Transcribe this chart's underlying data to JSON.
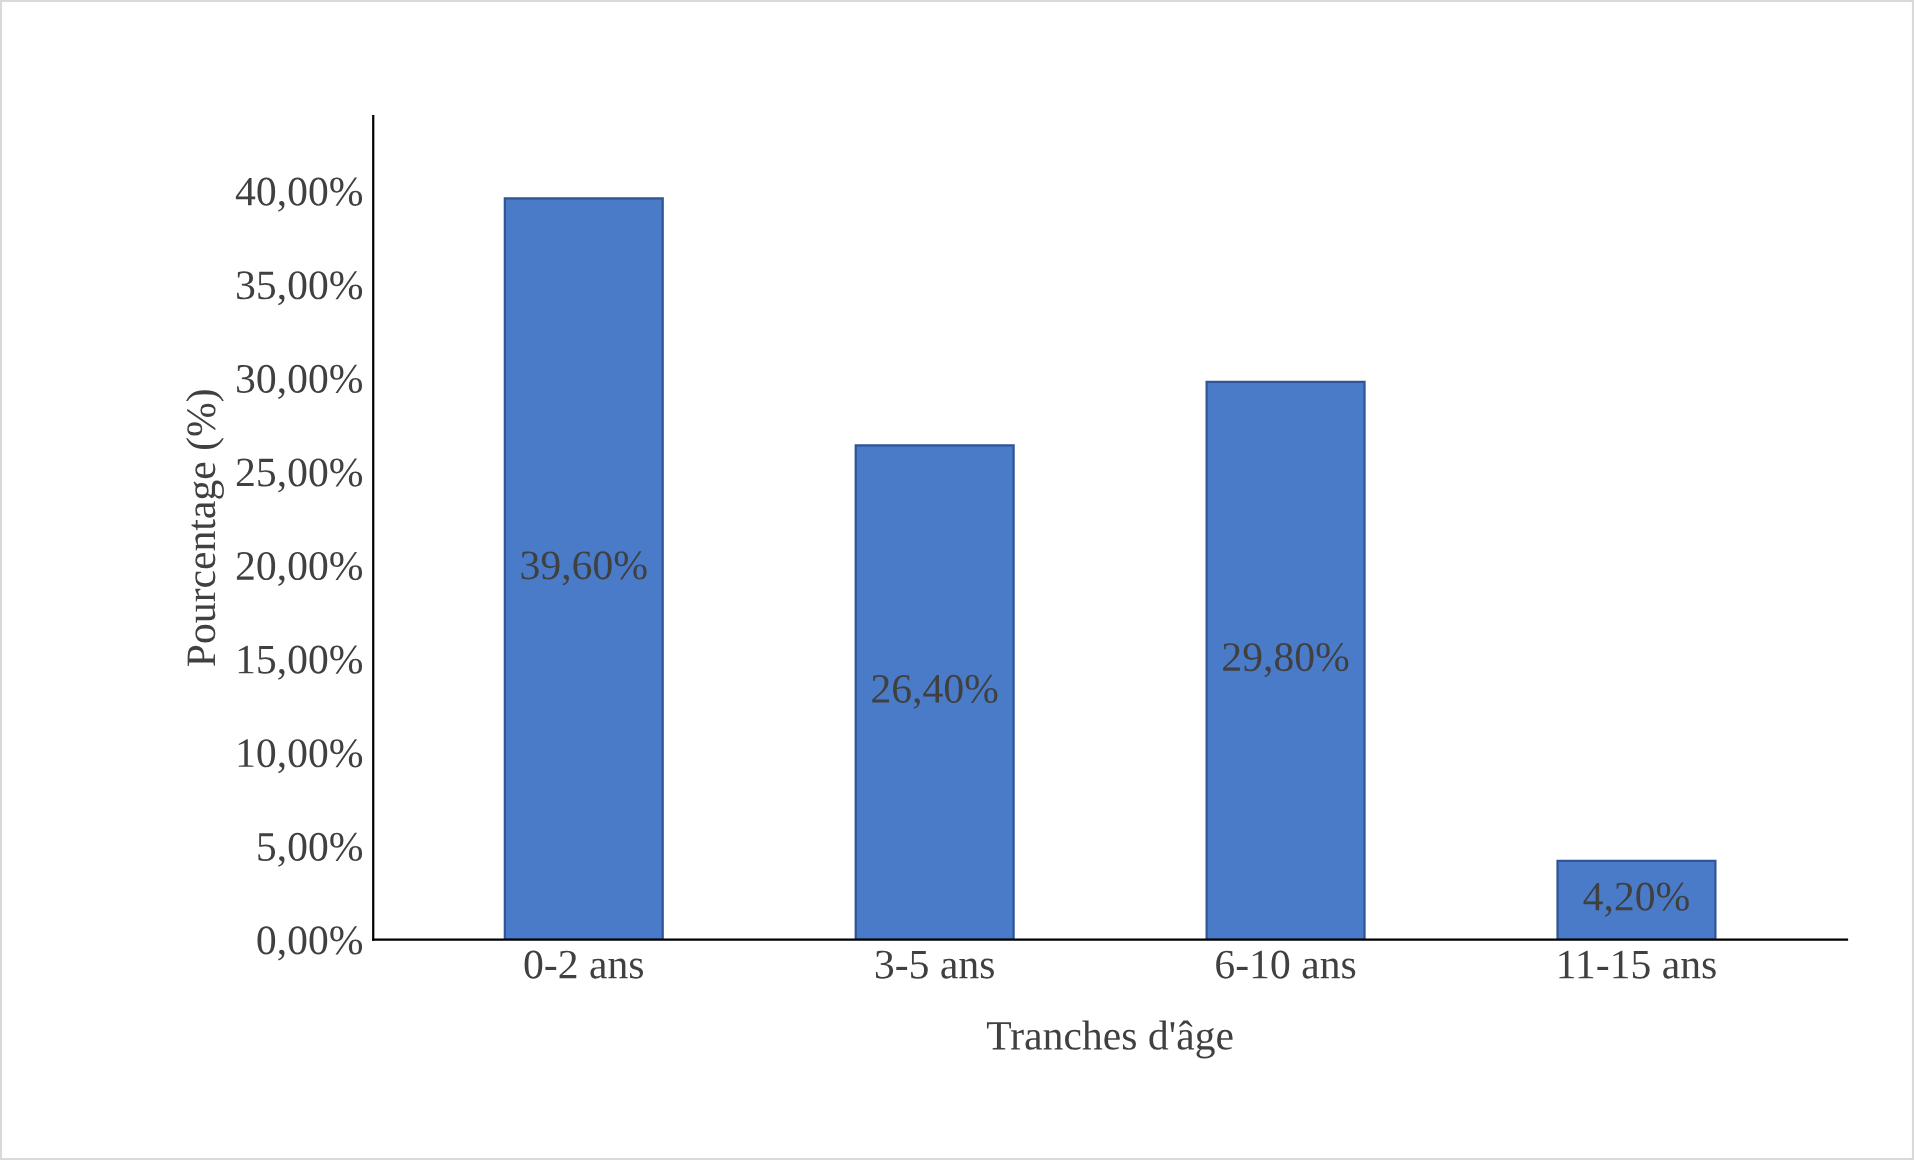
{
  "chart_data": {
    "type": "bar",
    "xlabel": "Tranches d'âge",
    "ylabel": "Pourcentage (%)",
    "categories": [
      "0-2 ans",
      "3-5 ans",
      "6-10 ans",
      "11-15 ans"
    ],
    "values": [
      39.6,
      26.4,
      29.8,
      4.2
    ],
    "value_labels": [
      "39,60%",
      "26,40%",
      "29,80%",
      "4,20%"
    ],
    "color": "#4a7bc8",
    "ylim": [
      0,
      44
    ],
    "yticks": [
      {
        "value": 0,
        "label": "0,00%"
      },
      {
        "value": 5,
        "label": "5,00%"
      },
      {
        "value": 10,
        "label": "10,00%"
      },
      {
        "value": 15,
        "label": "15,00%"
      },
      {
        "value": 20,
        "label": "20,00%"
      },
      {
        "value": 25,
        "label": "25,00%"
      },
      {
        "value": 30,
        "label": "30,00%"
      },
      {
        "value": 35,
        "label": "35,00%"
      },
      {
        "value": 40,
        "label": "40,00%"
      }
    ],
    "grid": false,
    "legend": false
  }
}
